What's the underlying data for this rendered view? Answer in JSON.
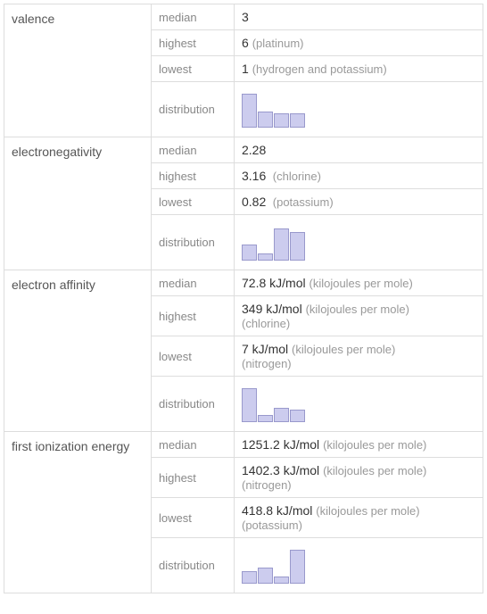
{
  "properties": [
    {
      "name": "valence",
      "median": "3",
      "highest_value": "6",
      "highest_element": "(platinum)",
      "lowest_value": "1",
      "lowest_element": "(hydrogen and potassium)",
      "distribution": {
        "bars": [
          38,
          18,
          16,
          16
        ],
        "fill": "#ccccee",
        "border": "#9999cc"
      }
    },
    {
      "name": "electronegativity",
      "median": "2.28",
      "highest_value": "3.16",
      "highest_element": "(chlorine)",
      "lowest_value": "0.82",
      "lowest_element": "(potassium)",
      "distribution": {
        "bars": [
          18,
          8,
          36,
          32
        ],
        "fill": "#ccccee",
        "border": "#9999cc"
      }
    },
    {
      "name": "electron affinity",
      "median_value": "72.8 kJ/mol",
      "median_unit": "(kilojoules per mole)",
      "highest_value": "349 kJ/mol",
      "highest_unit": "(kilojoules per mole)",
      "highest_element": "(chlorine)",
      "lowest_value": "7 kJ/mol",
      "lowest_unit": "(kilojoules per mole)",
      "lowest_element": "(nitrogen)",
      "distribution": {
        "bars": [
          38,
          8,
          16,
          14
        ],
        "fill": "#ccccee",
        "border": "#9999cc"
      }
    },
    {
      "name": "first ionization energy",
      "median_value": "1251.2 kJ/mol",
      "median_unit": "(kilojoules per mole)",
      "highest_value": "1402.3 kJ/mol",
      "highest_unit": "(kilojoules per mole)",
      "highest_element": "(nitrogen)",
      "lowest_value": "418.8 kJ/mol",
      "lowest_unit": "(kilojoules per mole)",
      "lowest_element": "(potassium)",
      "distribution": {
        "bars": [
          14,
          18,
          8,
          38
        ],
        "fill": "#ccccee",
        "border": "#9999cc"
      }
    }
  ],
  "labels": {
    "median": "median",
    "highest": "highest",
    "lowest": "lowest",
    "distribution": "distribution"
  }
}
